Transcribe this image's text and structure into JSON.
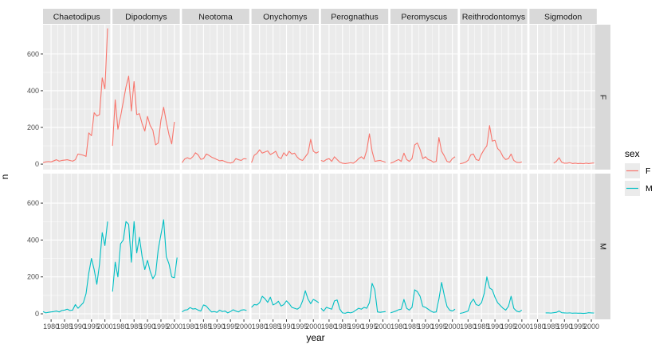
{
  "chart_data": {
    "type": "line",
    "facet_type": "grid",
    "x_var_label": "year",
    "y_var_label": "n",
    "xlim": [
      1977,
      2002
    ],
    "ylim": [
      -30,
      760
    ],
    "x_ticks": [
      1980,
      1985,
      1990,
      1995,
      2000
    ],
    "x_tick_labels": [
      "1980",
      "1985",
      "1990",
      "1995",
      "2000"
    ],
    "y_ticks": [
      0,
      200,
      400,
      600
    ],
    "y_tick_labels": [
      "0",
      "200",
      "400",
      "600"
    ],
    "grid": true,
    "legend": {
      "title": "sex",
      "position": "right",
      "entries": [
        "F",
        "M"
      ]
    },
    "colors": {
      "F": "#F8766D",
      "M": "#00BFC4",
      "panel_bg": "#EBEBEB",
      "strip_bg": "#D9D9D9",
      "grid": "#FFFFFF"
    },
    "columns": [
      "Chaetodipus",
      "Dipodomys",
      "Neotoma",
      "Onychomys",
      "Perognathus",
      "Peromyscus",
      "Reithrodontomys",
      "Sigmodon"
    ],
    "rows": [
      "F",
      "M"
    ],
    "x": [
      1977,
      1978,
      1979,
      1980,
      1981,
      1982,
      1983,
      1984,
      1985,
      1986,
      1987,
      1988,
      1989,
      1990,
      1991,
      1992,
      1993,
      1994,
      1995,
      1996,
      1997,
      1998,
      1999,
      2000,
      2001,
      2002
    ],
    "series": [
      {
        "genus": "Chaetodipus",
        "sex": "F",
        "values": [
          8,
          12,
          14,
          12,
          18,
          24,
          16,
          20,
          22,
          24,
          20,
          16,
          24,
          55,
          52,
          48,
          42,
          170,
          155,
          280,
          262,
          270,
          470,
          410,
          740,
          null
        ]
      },
      {
        "genus": "Dipodomys",
        "sex": "F",
        "values": [
          100,
          350,
          190,
          260,
          340,
          420,
          480,
          290,
          450,
          270,
          275,
          220,
          180,
          260,
          210,
          185,
          105,
          115,
          240,
          310,
          230,
          160,
          110,
          230,
          null,
          null
        ]
      },
      {
        "genus": "Neotoma",
        "sex": "F",
        "values": [
          8,
          28,
          35,
          28,
          40,
          62,
          50,
          26,
          30,
          55,
          48,
          38,
          32,
          25,
          18,
          20,
          14,
          8,
          6,
          10,
          30,
          24,
          20,
          30,
          28,
          null
        ]
      },
      {
        "genus": "Onychomys",
        "sex": "F",
        "values": [
          8,
          48,
          58,
          78,
          60,
          66,
          72,
          52,
          60,
          70,
          38,
          30,
          62,
          45,
          70,
          55,
          60,
          38,
          25,
          20,
          40,
          60,
          135,
          70,
          60,
          68
        ]
      },
      {
        "genus": "Perognathus",
        "sex": "F",
        "values": [
          20,
          15,
          25,
          30,
          15,
          40,
          25,
          10,
          5,
          3,
          5,
          8,
          5,
          15,
          30,
          40,
          28,
          75,
          165,
          70,
          15,
          18,
          20,
          15,
          10,
          null
        ]
      },
      {
        "genus": "Peromyscus",
        "sex": "F",
        "values": [
          5,
          10,
          18,
          25,
          15,
          60,
          25,
          15,
          30,
          105,
          115,
          80,
          30,
          40,
          25,
          20,
          10,
          15,
          145,
          70,
          45,
          15,
          10,
          30,
          40,
          null
        ]
      },
      {
        "genus": "Reithrodontomys",
        "sex": "F",
        "values": [
          2,
          5,
          10,
          20,
          50,
          55,
          25,
          20,
          55,
          80,
          100,
          210,
          125,
          130,
          85,
          70,
          40,
          25,
          30,
          55,
          20,
          10,
          8,
          12,
          null,
          null
        ]
      },
      {
        "genus": "Sigmodon",
        "sex": "F",
        "values": [
          null,
          null,
          null,
          null,
          null,
          null,
          null,
          null,
          null,
          5,
          15,
          35,
          10,
          5,
          5,
          8,
          3,
          5,
          3,
          4,
          2,
          5,
          3,
          5,
          6,
          null
        ]
      },
      {
        "genus": "Chaetodipus",
        "sex": "M",
        "values": [
          12,
          5,
          8,
          10,
          12,
          15,
          10,
          18,
          20,
          25,
          18,
          20,
          50,
          30,
          45,
          60,
          110,
          220,
          300,
          240,
          160,
          270,
          440,
          370,
          500,
          null
        ]
      },
      {
        "genus": "Dipodomys",
        "sex": "M",
        "values": [
          120,
          280,
          200,
          380,
          400,
          500,
          485,
          280,
          500,
          330,
          415,
          310,
          240,
          290,
          230,
          190,
          215,
          350,
          430,
          510,
          310,
          270,
          200,
          195,
          305,
          null
        ]
      },
      {
        "genus": "Neotoma",
        "sex": "M",
        "values": [
          10,
          20,
          22,
          34,
          26,
          28,
          20,
          15,
          48,
          42,
          25,
          10,
          12,
          8,
          20,
          12,
          15,
          5,
          12,
          22,
          15,
          10,
          20,
          22,
          18,
          null
        ]
      },
      {
        "genus": "Onychomys",
        "sex": "M",
        "values": [
          35,
          50,
          48,
          60,
          95,
          82,
          62,
          90,
          48,
          55,
          68,
          42,
          50,
          70,
          55,
          35,
          30,
          25,
          35,
          70,
          125,
          80,
          55,
          78,
          70,
          60
        ]
      },
      {
        "genus": "Perognathus",
        "sex": "M",
        "values": [
          30,
          15,
          35,
          30,
          25,
          70,
          75,
          25,
          5,
          3,
          8,
          5,
          10,
          20,
          30,
          25,
          35,
          30,
          60,
          165,
          130,
          10,
          8,
          10,
          12,
          null
        ]
      },
      {
        "genus": "Peromyscus",
        "sex": "M",
        "values": [
          5,
          10,
          15,
          22,
          25,
          78,
          30,
          20,
          35,
          130,
          120,
          95,
          40,
          35,
          25,
          15,
          8,
          10,
          80,
          170,
          100,
          40,
          20,
          15,
          25,
          null
        ]
      },
      {
        "genus": "Reithrodontomys",
        "sex": "M",
        "values": [
          2,
          5,
          10,
          15,
          60,
          80,
          50,
          45,
          60,
          110,
          200,
          140,
          130,
          90,
          60,
          45,
          30,
          20,
          40,
          95,
          30,
          15,
          10,
          20,
          null,
          null
        ]
      },
      {
        "genus": "Sigmodon",
        "sex": "M",
        "values": [
          null,
          null,
          null,
          null,
          null,
          null,
          5,
          5,
          4,
          6,
          8,
          15,
          6,
          5,
          4,
          5,
          3,
          4,
          3,
          3,
          2,
          3,
          6,
          5,
          4,
          null
        ]
      }
    ]
  }
}
